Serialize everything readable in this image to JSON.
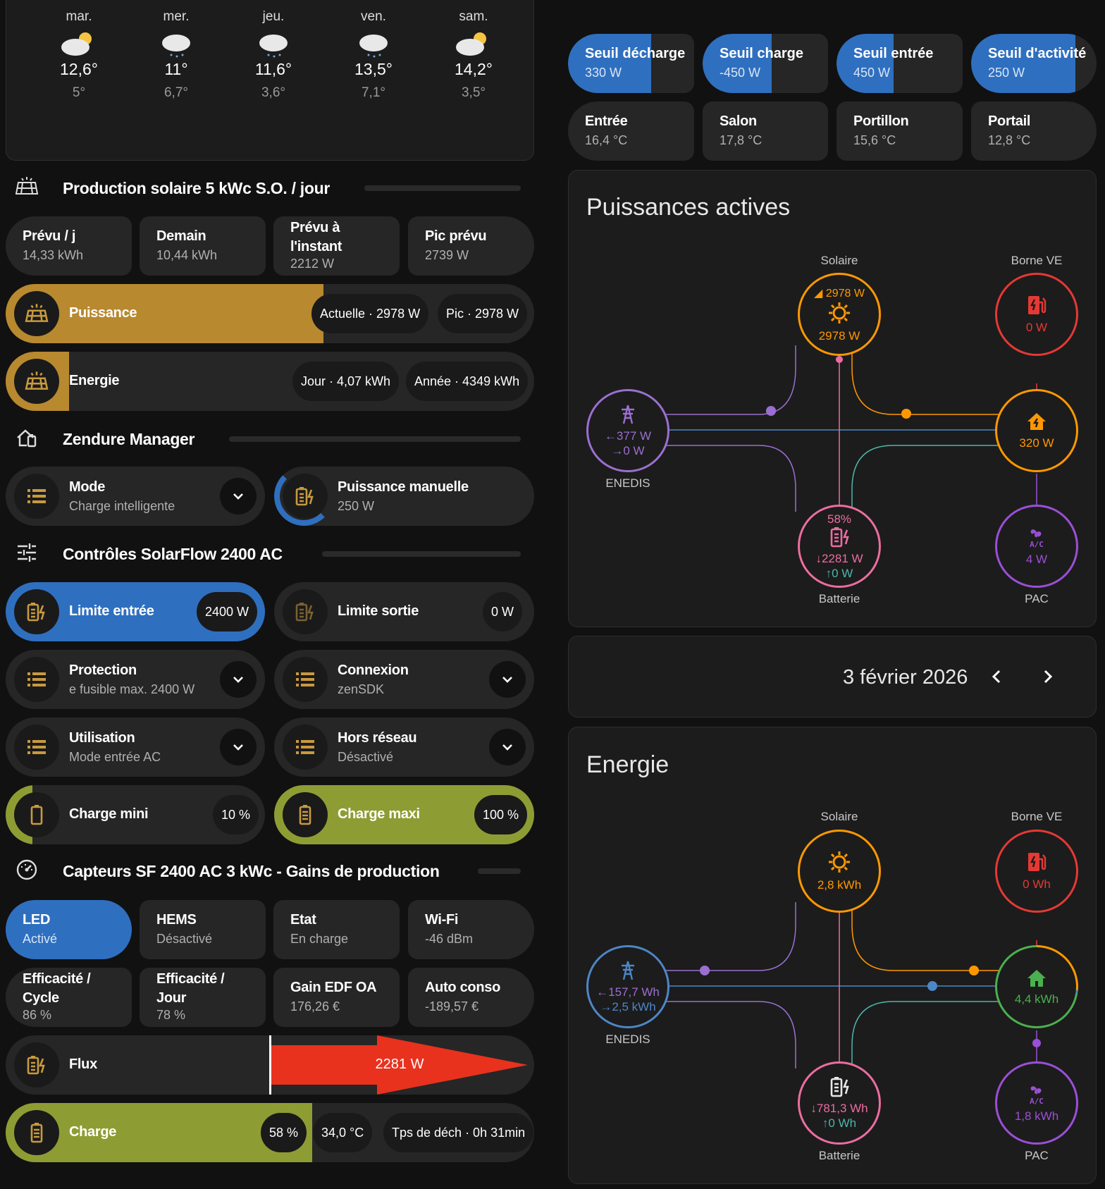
{
  "weather": [
    {
      "day": "mar.",
      "high": "12,6°",
      "low": "5°",
      "icon": "partly-cloudy-icon"
    },
    {
      "day": "mer.",
      "high": "11°",
      "low": "6,7°",
      "icon": "rain-icon"
    },
    {
      "day": "jeu.",
      "high": "11,6°",
      "low": "3,6°",
      "icon": "rain-icon"
    },
    {
      "day": "ven.",
      "high": "13,5°",
      "low": "7,1°",
      "icon": "rain-icon"
    },
    {
      "day": "sam.",
      "high": "14,2°",
      "low": "3,5°",
      "icon": "partly-cloudy-icon"
    }
  ],
  "solar": {
    "title": "Production solaire 5 kWc S.O. / jour",
    "tiles": [
      {
        "label": "Prévu / j",
        "value": "14,33 kWh"
      },
      {
        "label": "Demain",
        "value": "10,44 kWh"
      },
      {
        "label": "Prévu à l'instant",
        "value": "2212 W"
      },
      {
        "label": "Pic prévu",
        "value": "2739 W"
      }
    ],
    "power": {
      "label": "Puissance",
      "chip1": "Actuelle · 2978 W",
      "chip2": "Pic · 2978 W",
      "fill": 0.6
    },
    "energy": {
      "label": "Energie",
      "chip1": "Jour · 4,07 kWh",
      "chip2": "Année · 4349 kWh",
      "fill": 0.12
    }
  },
  "zendure": {
    "title": "Zendure Manager",
    "mode": {
      "label": "Mode",
      "value": "Charge intelligente"
    },
    "manual": {
      "label": "Puissance manuelle",
      "value": "250 W"
    }
  },
  "controls": {
    "title": "Contrôles SolarFlow 2400 AC",
    "limit_in": {
      "label": "Limite entrée",
      "value": "2400 W"
    },
    "limit_out": {
      "label": "Limite sortie",
      "value": "0 W"
    },
    "protection": {
      "label": "Protection",
      "value": "e fusible max. 2400 W"
    },
    "connexion": {
      "label": "Connexion",
      "value": "zenSDK"
    },
    "utilisation": {
      "label": "Utilisation",
      "value": "Mode entrée AC"
    },
    "offgrid": {
      "label": "Hors réseau",
      "value": "Désactivé"
    },
    "charge_min": {
      "label": "Charge mini",
      "value": "10 %",
      "fill": 0.1
    },
    "charge_max": {
      "label": "Charge maxi",
      "value": "100 %",
      "fill": 1.0
    }
  },
  "sensors": {
    "title": "Capteurs SF 2400 AC 3 kWc - Gains de production",
    "tiles": [
      {
        "label": "LED",
        "value": "Activé"
      },
      {
        "label": "HEMS",
        "value": "Désactivé"
      },
      {
        "label": "Etat",
        "value": "En charge"
      },
      {
        "label": "Wi-Fi",
        "value": "-46 dBm"
      },
      {
        "label": "Efficacité / Cycle",
        "value": "86 %"
      },
      {
        "label": "Efficacité / Jour",
        "value": "78 %"
      },
      {
        "label": "Gain EDF OA",
        "value": "176,26 €"
      },
      {
        "label": "Auto conso",
        "value": "-189,57 €"
      }
    ],
    "flux": {
      "label": "Flux",
      "value": "2281 W"
    },
    "charge": {
      "label": "Charge",
      "pct": "58 %",
      "temp": "34,0 °C",
      "time": "Tps de déch · 0h 31min",
      "fill": 0.58
    }
  },
  "thresholds": [
    {
      "label": "Seuil décharge",
      "value": "330 W",
      "fill": 0.66
    },
    {
      "label": "Seuil charge",
      "value": "-450 W",
      "fill": 0.55
    },
    {
      "label": "Seuil entrée",
      "value": "450 W",
      "fill": 0.45
    },
    {
      "label": "Seuil d'activité",
      "value": "250 W",
      "fill": 0.83
    }
  ],
  "temps": [
    {
      "label": "Entrée",
      "value": "16,4 °C"
    },
    {
      "label": "Salon",
      "value": "17,8 °C"
    },
    {
      "label": "Portillon",
      "value": "15,6 °C"
    },
    {
      "label": "Portail",
      "value": "12,8 °C"
    }
  ],
  "power_card": {
    "title": "Puissances actives",
    "solar_label": "Solaire",
    "solar_top": "2978 W",
    "solar_val": "2978 W",
    "ev_label": "Borne VE",
    "ev_val": "0 W",
    "grid_label": "ENEDIS",
    "grid_in": "377 W",
    "grid_out": "0 W",
    "home_val": "320 W",
    "bat_label": "Batterie",
    "bat_pct": "58%",
    "bat_in": "2281 W",
    "bat_out": "0 W",
    "pac_label": "PAC",
    "pac_val": "4 W"
  },
  "date_card": {
    "date": "3 février 2026"
  },
  "energy_card": {
    "title": "Energie",
    "solar_label": "Solaire",
    "solar_val": "2,8 kWh",
    "ev_label": "Borne VE",
    "ev_val": "0 Wh",
    "grid_label": "ENEDIS",
    "grid_in": "157,7 Wh",
    "grid_out": "2,5 kWh",
    "home_val": "4,4 kWh",
    "bat_label": "Batterie",
    "bat_in": "781,3 Wh",
    "bat_out": "0 Wh",
    "pac_label": "PAC",
    "pac_val": "1,8 kWh"
  },
  "colors": {
    "blue": "#2f6fbf",
    "gold": "#b8892f",
    "green": "#8e9d33",
    "solar": "#ff9800",
    "grid": "#9a6fd1",
    "battery": "#ec6da0",
    "ev": "#e53935",
    "pac": "#9b4fd6",
    "teal": "#4db6ac",
    "home_green": "#4caf50",
    "grid_blue": "#4d86c7",
    "arrow": "#e8321e"
  }
}
